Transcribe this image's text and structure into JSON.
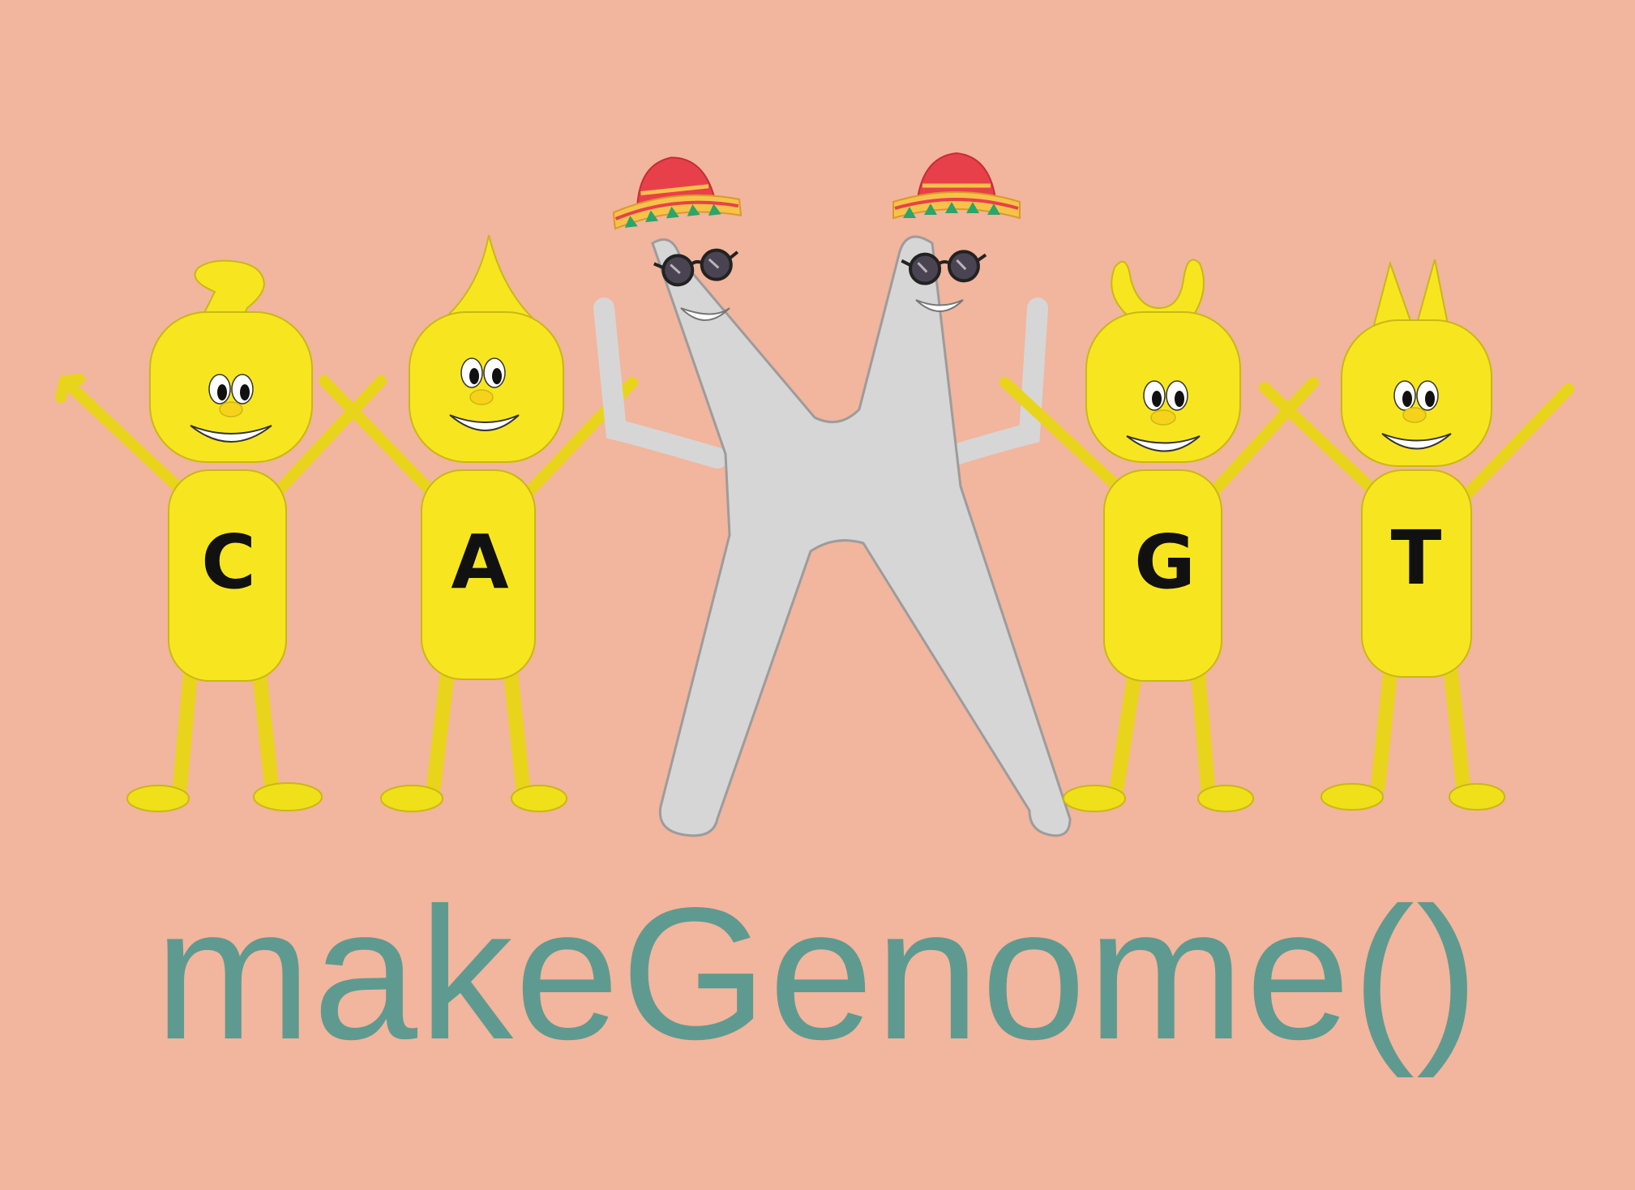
{
  "title": "makeGenome()",
  "colors": {
    "background": "#f2b59d",
    "title": "#5f9a90",
    "nucleotide_body": "#f7e61f",
    "chromosome": "#d6d6d6",
    "sombrero_crown": "#e8404a",
    "sombrero_brim": "#f7c24a"
  },
  "characters": [
    {
      "letter": "C"
    },
    {
      "letter": "A"
    },
    {
      "letter": "G"
    },
    {
      "letter": "T"
    }
  ],
  "icons": [
    "chromosome-icon",
    "sombrero-icon",
    "sunglasses-icon"
  ]
}
